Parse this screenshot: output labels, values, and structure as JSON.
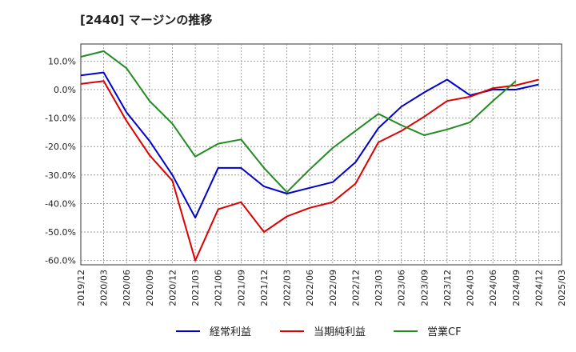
{
  "chart_data": {
    "type": "line",
    "title": "[2440]  マージンの推移",
    "xlabel": "",
    "ylabel": "",
    "ylim": [
      -61.5,
      16
    ],
    "yticks": [
      10,
      0,
      -10,
      -20,
      -30,
      -40,
      -50,
      -60
    ],
    "ytick_labels": [
      "10.0%",
      "0.0%",
      "-10.0%",
      "-20.0%",
      "-30.0%",
      "-40.0%",
      "-50.0%",
      "-60.0%"
    ],
    "x_ticks": [
      "2019/12",
      "2020/03",
      "2020/06",
      "2020/09",
      "2020/12",
      "2021/03",
      "2021/06",
      "2021/09",
      "2021/12",
      "2022/03",
      "2022/06",
      "2022/09",
      "2022/12",
      "2023/03",
      "2023/06",
      "2023/09",
      "2023/12",
      "2024/03",
      "2024/06",
      "2024/09",
      "2024/12",
      "2025/03"
    ],
    "grid": true,
    "legend_position": "bottom",
    "series": [
      {
        "name": "経常利益",
        "color": "#0000cc",
        "x": [
          "2019/12",
          "2020/03",
          "2020/06",
          "2020/09",
          "2020/12",
          "2021/03",
          "2021/06",
          "2021/09",
          "2021/12",
          "2022/03",
          "2022/06",
          "2022/09",
          "2022/12",
          "2023/03",
          "2023/06",
          "2023/09",
          "2023/12",
          "2024/03",
          "2024/06",
          "2024/09",
          "2024/12"
        ],
        "values": [
          5.0,
          6.0,
          -8.0,
          -18.0,
          -30.0,
          -45.0,
          -27.5,
          -27.5,
          -34.0,
          -36.5,
          -34.5,
          -32.5,
          -25.5,
          -13.5,
          -6.0,
          -1.0,
          3.5,
          -2.0,
          0.0,
          0.0,
          1.8
        ]
      },
      {
        "name": "当期純利益",
        "color": "#dd0000",
        "x": [
          "2019/12",
          "2020/03",
          "2020/06",
          "2020/09",
          "2020/12",
          "2021/03",
          "2021/06",
          "2021/09",
          "2021/12",
          "2022/03",
          "2022/06",
          "2022/09",
          "2022/12",
          "2023/03",
          "2023/06",
          "2023/09",
          "2023/12",
          "2024/03",
          "2024/06",
          "2024/09",
          "2024/12"
        ],
        "values": [
          2.0,
          3.0,
          -11.0,
          -23.0,
          -32.0,
          -60.0,
          -42.0,
          -39.5,
          -50.0,
          -44.5,
          -41.5,
          -39.5,
          -33.0,
          -18.5,
          -14.5,
          -9.5,
          -4.0,
          -2.5,
          0.5,
          1.5,
          3.5
        ]
      },
      {
        "name": "営業CF",
        "color": "#228b22",
        "x": [
          "2019/12",
          "2020/03",
          "2020/06",
          "2020/09",
          "2020/12",
          "2021/03",
          "2021/06",
          "2021/09",
          "2021/12",
          "2022/03",
          "2022/06",
          "2022/09",
          "2022/12",
          "2023/03",
          "2023/06",
          "2023/09",
          "2023/12",
          "2024/03",
          "2024/06",
          "2024/09"
        ],
        "values": [
          11.5,
          13.5,
          7.5,
          -4.0,
          -12.0,
          -23.5,
          -19.0,
          -17.5,
          -27.5,
          -36.0,
          -28.0,
          -20.5,
          -14.5,
          -8.5,
          -12.5,
          -16.0,
          -14.0,
          -11.5,
          -4.0,
          3.0
        ]
      }
    ]
  }
}
